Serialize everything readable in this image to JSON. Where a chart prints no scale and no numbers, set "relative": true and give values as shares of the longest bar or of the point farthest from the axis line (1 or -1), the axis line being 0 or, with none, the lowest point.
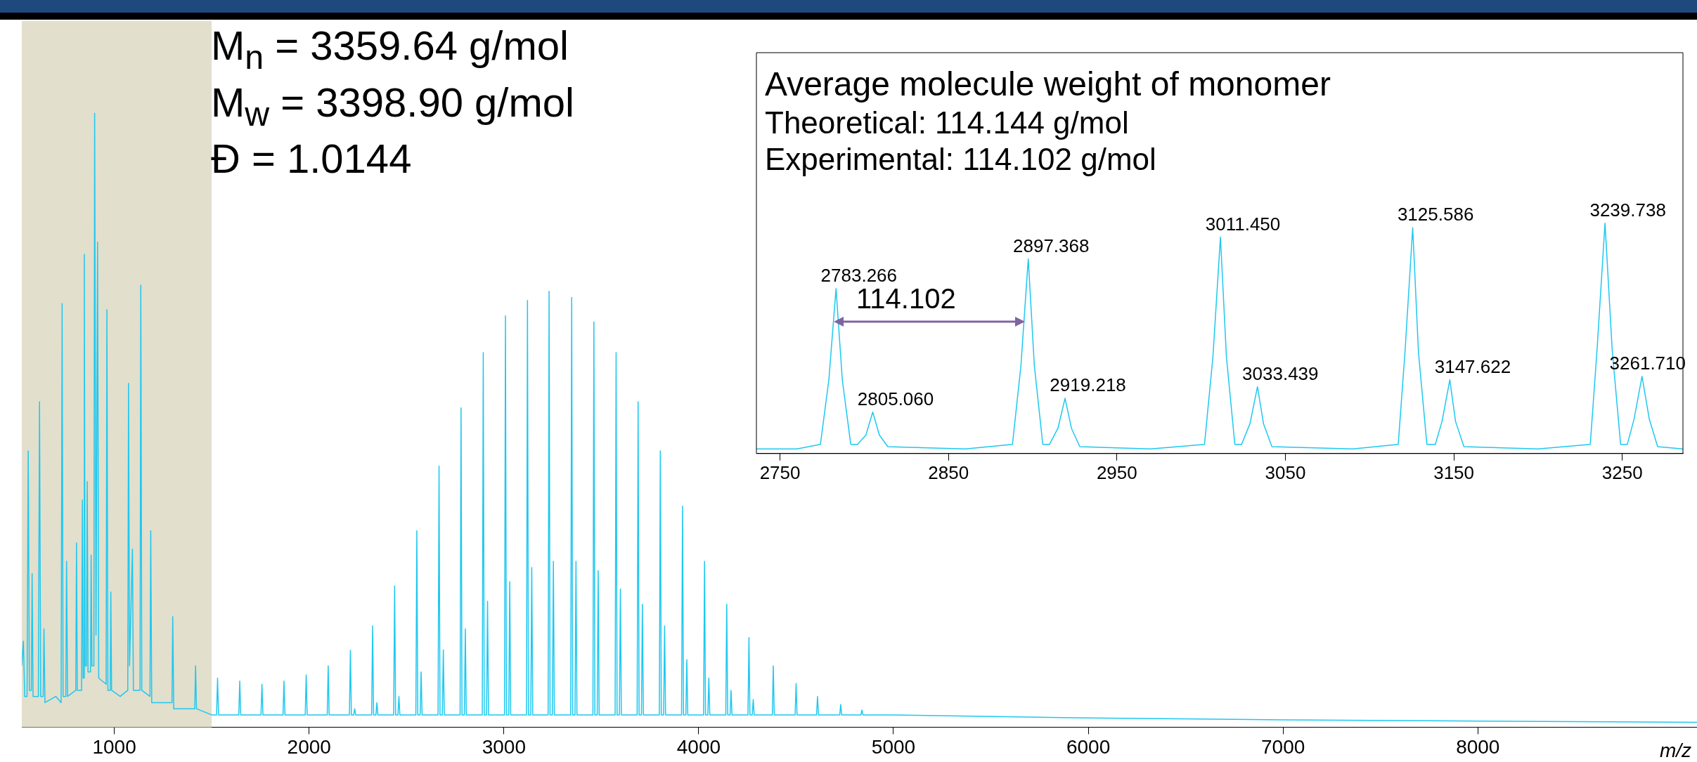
{
  "chart_data": [
    {
      "type": "line",
      "xlabel": "m/z",
      "relative": true,
      "color": "#1ec8f0",
      "annotations": [
        "M$_{n}$ = 3359.64 g/mol",
        "M$_{w}$ = 3398.90 g/mol",
        "Đ = 1.0144"
      ],
      "bands": [
        {
          "axis": "x",
          "from": 525,
          "to": 1500,
          "color": "#e2dfcd"
        }
      ],
      "xlim": [
        525,
        9125
      ],
      "xticks": [
        1000,
        2000,
        3000,
        4000,
        5000,
        6000,
        7000,
        8000
      ],
      "x": [
        525,
        533,
        540,
        552,
        558,
        564,
        574,
        578,
        583,
        610,
        616,
        622,
        635,
        639,
        644,
        700,
        727,
        732,
        737,
        751,
        755,
        760,
        802,
        806,
        810,
        832,
        836,
        840,
        843,
        846,
        850,
        857,
        861,
        865,
        878,
        881,
        885,
        895,
        899,
        906,
        914,
        920,
        958,
        962,
        967,
        979,
        982,
        986,
        1030,
        1069,
        1073,
        1078,
        1093,
        1098,
        1132,
        1136,
        1141,
        1183,
        1187,
        1192,
        1250,
        1296,
        1300,
        1305,
        1413,
        1417,
        1422,
        1500,
        1525,
        1530,
        1535,
        1639,
        1644,
        1649,
        1753,
        1758,
        1763,
        1866,
        1871,
        1876,
        1980,
        1985,
        1990,
        2093,
        2098,
        2103,
        2207,
        2212,
        2217,
        2229,
        2234,
        2239,
        2321,
        2326,
        2331,
        2343,
        2348,
        2353,
        2434,
        2439,
        2444,
        2456,
        2461,
        2466,
        2548,
        2553,
        2558,
        2570,
        2575,
        2580,
        2662,
        2667,
        2672,
        2684,
        2689,
        2694,
        2775,
        2780,
        2785,
        2797,
        2802,
        2807,
        2889,
        2894,
        2899,
        2911,
        2916,
        2921,
        3003,
        3008,
        3013,
        3025,
        3030,
        3035,
        3116,
        3121,
        3126,
        3138,
        3143,
        3148,
        3227,
        3232,
        3237,
        3249,
        3254,
        3259,
        3343,
        3348,
        3353,
        3365,
        3370,
        3375,
        3457,
        3462,
        3467,
        3479,
        3484,
        3489,
        3571,
        3576,
        3581,
        3593,
        3598,
        3603,
        3684,
        3689,
        3694,
        3706,
        3711,
        3716,
        3798,
        3803,
        3808,
        3820,
        3825,
        3830,
        3912,
        3917,
        3922,
        3934,
        3939,
        3944,
        4025,
        4030,
        4035,
        4047,
        4052,
        4057,
        4139,
        4144,
        4149,
        4161,
        4166,
        4171,
        4253,
        4258,
        4263,
        4275,
        4280,
        4285,
        4378,
        4383,
        4388,
        4495,
        4500,
        4505,
        4605,
        4610,
        4615,
        4724,
        4729,
        4734,
        4833,
        4838,
        4843,
        5000,
        6000,
        7000,
        8000,
        9125
      ],
      "values": [
        0.1,
        0.14,
        0.05,
        0.05,
        0.45,
        0.06,
        0.06,
        0.25,
        0.05,
        0.05,
        0.53,
        0.05,
        0.05,
        0.16,
        0.04,
        0.05,
        0.04,
        0.69,
        0.05,
        0.05,
        0.27,
        0.05,
        0.06,
        0.3,
        0.06,
        0.06,
        0.37,
        0.08,
        0.08,
        0.77,
        0.1,
        0.1,
        0.4,
        0.09,
        0.09,
        0.28,
        0.1,
        0.1,
        1,
        0.15,
        0.79,
        0.08,
        0.07,
        0.68,
        0.06,
        0.06,
        0.22,
        0.06,
        0.05,
        0.06,
        0.56,
        0.1,
        0.29,
        0.06,
        0.06,
        0.72,
        0.06,
        0.05,
        0.32,
        0.04,
        0.04,
        0.04,
        0.18,
        0.03,
        0.03,
        0.1,
        0.03,
        0.02,
        0.02,
        0.08,
        0.02,
        0.02,
        0.075,
        0.02,
        0.02,
        0.07,
        0.02,
        0.02,
        0.075,
        0.02,
        0.02,
        0.085,
        0.02,
        0.02,
        0.1,
        0.02,
        0.02,
        0.125,
        0.02,
        0.02,
        0.03,
        0.02,
        0.02,
        0.165,
        0.02,
        0.02,
        0.04,
        0.02,
        0.02,
        0.23,
        0.02,
        0.02,
        0.05,
        0.02,
        0.02,
        0.32,
        0.02,
        0.02,
        0.09,
        0.02,
        0.02,
        0.425,
        0.02,
        0.02,
        0.126,
        0.02,
        0.02,
        0.52,
        0.02,
        0.02,
        0.16,
        0.02,
        0.02,
        0.61,
        0.02,
        0.02,
        0.205,
        0.02,
        0.02,
        0.67,
        0.02,
        0.02,
        0.237,
        0.02,
        0.02,
        0.695,
        0.02,
        0.02,
        0.26,
        0.02,
        0.02,
        0.71,
        0.02,
        0.02,
        0.27,
        0.02,
        0.02,
        0.7,
        0.02,
        0.02,
        0.27,
        0.02,
        0.02,
        0.66,
        0.02,
        0.02,
        0.255,
        0.02,
        0.02,
        0.61,
        0.02,
        0.02,
        0.225,
        0.02,
        0.02,
        0.53,
        0.02,
        0.02,
        0.2,
        0.02,
        0.02,
        0.45,
        0.02,
        0.02,
        0.165,
        0.02,
        0.02,
        0.36,
        0.02,
        0.02,
        0.11,
        0.02,
        0.02,
        0.27,
        0.02,
        0.02,
        0.08,
        0.02,
        0.02,
        0.2,
        0.02,
        0.02,
        0.06,
        0.02,
        0.02,
        0.146,
        0.02,
        0.02,
        0.045,
        0.02,
        0.02,
        0.1,
        0.02,
        0.02,
        0.071,
        0.02,
        0.02,
        0.05,
        0.02,
        0.02,
        0.037,
        0.02,
        0.02,
        0.028,
        0.02,
        0.02,
        0.015,
        0.012,
        0.01,
        0.008
      ]
    },
    {
      "type": "line",
      "title": "Average molecule weight of monomer",
      "relative": true,
      "color": "#1ec8f0",
      "annotations": [
        "Theoretical: 114.144 g/mol",
        "Experimental: 114.102 g/mol",
        "114.102",
        {
          "text": "2783.266",
          "x": 2783.266,
          "y": 0.716
        },
        {
          "text": "2805.060",
          "x": 2805.06,
          "y": 0.18
        },
        {
          "text": "2897.368",
          "x": 2897.368,
          "y": 0.845
        },
        {
          "text": "2919.218",
          "x": 2919.218,
          "y": 0.24
        },
        {
          "text": "3011.450",
          "x": 3011.45,
          "y": 0.94
        },
        {
          "text": "3033.439",
          "x": 3033.439,
          "y": 0.29
        },
        {
          "text": "3125.586",
          "x": 3125.586,
          "y": 0.98
        },
        {
          "text": "3147.622",
          "x": 3147.622,
          "y": 0.32
        },
        {
          "text": "3239.738",
          "x": 3239.738,
          "y": 1
        },
        {
          "text": "3261.710",
          "x": 3261.71,
          "y": 0.335
        }
      ],
      "xlim": [
        2736,
        3286
      ],
      "xticks": [
        2750,
        2850,
        2950,
        3050,
        3150,
        3250
      ],
      "x": [
        2736,
        2760,
        2774,
        2779,
        2783.266,
        2787,
        2792,
        2796,
        2801,
        2805.06,
        2809,
        2814,
        2860,
        2888,
        2893,
        2897.368,
        2901,
        2906,
        2910,
        2915,
        2919.218,
        2923,
        2928,
        2970,
        3002,
        3007,
        3011.45,
        3015,
        3020,
        3024,
        3029,
        3033.439,
        3037,
        3042,
        3090,
        3117,
        3121,
        3125.586,
        3129,
        3134,
        3139,
        3143,
        3147.622,
        3151,
        3156,
        3200,
        3231,
        3235,
        3239.738,
        3244,
        3249,
        3253,
        3257,
        3261.71,
        3266,
        3271,
        3286
      ],
      "values": [
        0.02,
        0.02,
        0.04,
        0.32,
        0.716,
        0.32,
        0.04,
        0.04,
        0.08,
        0.18,
        0.08,
        0.03,
        0.02,
        0.04,
        0.38,
        0.845,
        0.38,
        0.04,
        0.04,
        0.11,
        0.24,
        0.11,
        0.03,
        0.02,
        0.04,
        0.42,
        0.94,
        0.42,
        0.04,
        0.04,
        0.13,
        0.29,
        0.13,
        0.03,
        0.02,
        0.04,
        0.44,
        0.98,
        0.44,
        0.04,
        0.04,
        0.14,
        0.32,
        0.14,
        0.03,
        0.02,
        0.04,
        0.45,
        1,
        0.45,
        0.04,
        0.04,
        0.15,
        0.335,
        0.15,
        0.03,
        0.02
      ]
    }
  ]
}
